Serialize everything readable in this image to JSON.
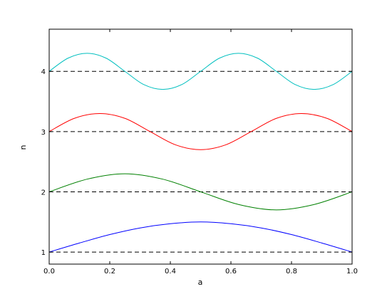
{
  "chart_data": {
    "type": "line",
    "xlabel": "a",
    "ylabel": "n",
    "xlim": [
      0.0,
      1.0
    ],
    "ylim": [
      0.8,
      4.7
    ],
    "xticks": [
      "0.0",
      "0.2",
      "0.4",
      "0.6",
      "0.8",
      "1.0"
    ],
    "yticks": [
      "1",
      "2",
      "3",
      "4"
    ],
    "grid": false,
    "legend": "none",
    "series": [
      {
        "color": "#0000ff",
        "style": "solid",
        "x": [
          0.0,
          0.1,
          0.2,
          0.3,
          0.4,
          0.5,
          0.6,
          0.7,
          0.8,
          0.9,
          1.0
        ],
        "y": [
          1.0,
          1.15,
          1.29,
          1.4,
          1.47,
          1.5,
          1.47,
          1.4,
          1.29,
          1.15,
          1.0
        ]
      },
      {
        "color": "#008000",
        "style": "solid",
        "x": [
          0.0,
          0.125,
          0.25,
          0.375,
          0.5,
          0.625,
          0.75,
          0.875,
          1.0
        ],
        "y": [
          2.0,
          2.21,
          2.3,
          2.21,
          2.0,
          1.79,
          1.7,
          1.79,
          2.0
        ]
      },
      {
        "color": "#ff0000",
        "style": "solid",
        "x": [
          0.0,
          0.083,
          0.167,
          0.25,
          0.333,
          0.417,
          0.5,
          0.583,
          0.667,
          0.75,
          0.833,
          0.917,
          1.0
        ],
        "y": [
          3.0,
          3.22,
          3.3,
          3.22,
          3.0,
          2.78,
          2.7,
          2.78,
          3.0,
          3.22,
          3.3,
          3.22,
          3.0
        ]
      },
      {
        "color": "#00bfbf",
        "style": "solid",
        "x": [
          0.0,
          0.0625,
          0.125,
          0.1875,
          0.25,
          0.3125,
          0.375,
          0.4375,
          0.5,
          0.5625,
          0.625,
          0.6875,
          0.75,
          0.8125,
          0.875,
          0.9375,
          1.0
        ],
        "y": [
          4.0,
          4.22,
          4.3,
          4.22,
          4.0,
          3.78,
          3.7,
          3.78,
          4.0,
          4.22,
          4.3,
          4.22,
          4.0,
          3.78,
          3.7,
          3.78,
          4.0
        ]
      },
      {
        "color": "#000000",
        "style": "dashed",
        "x": [
          0.0,
          1.0
        ],
        "y": [
          1.0,
          1.0
        ]
      },
      {
        "color": "#000000",
        "style": "dashed",
        "x": [
          0.0,
          1.0
        ],
        "y": [
          2.0,
          2.0
        ]
      },
      {
        "color": "#000000",
        "style": "dashed",
        "x": [
          0.0,
          1.0
        ],
        "y": [
          3.0,
          3.0
        ]
      },
      {
        "color": "#000000",
        "style": "dashed",
        "x": [
          0.0,
          1.0
        ],
        "y": [
          4.0,
          4.0
        ]
      }
    ]
  }
}
